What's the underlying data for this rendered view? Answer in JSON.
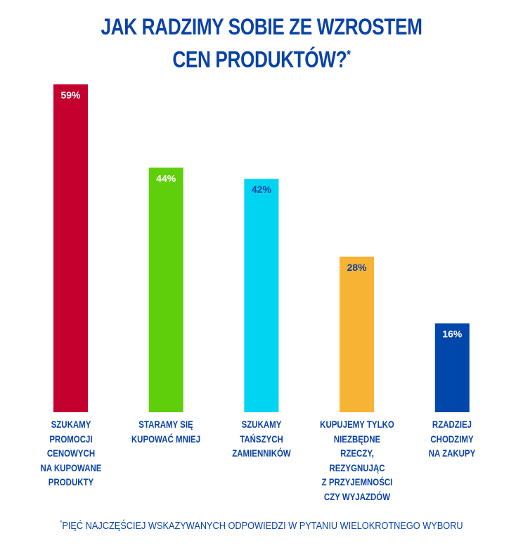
{
  "title_line1": "JAK RADZIMY SOBIE ZE WZROSTEM",
  "title_line2": "CEN PRODUKTÓW?",
  "title_mark": "*",
  "footnote_mark": "*",
  "footnote": "PIĘĆ NAJCZĘŚCIEJ WSKAZYWANYCH ODPOWIEDZI W PYTANIU WIELOKROTNEGO WYBORU",
  "chart_data": {
    "type": "bar",
    "title": "JAK RADZIMY SOBIE ZE WZROSTEM CEN PRODUKTÓW?*",
    "categories": [
      "SZUKAMY\nPROMOCJI\nCENOWYCH\nNA KUPOWANE\nPRODUKTY",
      "STARAMY SIĘ\nKUPOWAĆ MNIEJ",
      "SZUKAMY\nTAŃSZYCH\nZAMIENNIKÓW",
      "KUPUJEMY TYLKO\nNIEZBĘDNE\nRZECZY,\nREZYGNUJĄC\nZ PRZYJEMNOŚCI\nCZY WYJAZDÓW",
      "RZADZIEJ\nCHODZIMY\nNA ZAKUPY"
    ],
    "values": [
      59,
      44,
      42,
      28,
      16
    ],
    "data_labels": [
      "59%",
      "44%",
      "42%",
      "28%",
      "16%"
    ],
    "colors": [
      "#c4002f",
      "#5ecf0a",
      "#00d4f0",
      "#f7b334",
      "#0047ab"
    ],
    "label_colors": [
      "#ffffff",
      "#ffffff",
      "#0a43a8",
      "#0a43a8",
      "#ffffff"
    ],
    "grid": false,
    "legend": "none"
  }
}
